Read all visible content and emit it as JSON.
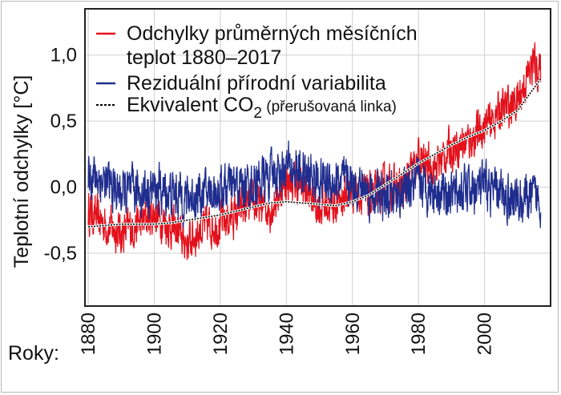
{
  "chart_data": {
    "type": "line",
    "ylabel": "Teplotní odchylky [°C]",
    "xlabel": "Roky:",
    "xlim": [
      1879,
      2020
    ],
    "ylim": [
      -0.9,
      1.35
    ],
    "grid": true,
    "legend_placement": "top-left",
    "x_ticks": [
      1880,
      1900,
      1920,
      1940,
      1960,
      1980,
      2000
    ],
    "y_ticks": [
      {
        "value": 1.0,
        "label": "1,0"
      },
      {
        "value": 0.5,
        "label": "0,5"
      },
      {
        "value": 0.0,
        "label": "0,0"
      },
      {
        "value": -0.5,
        "label": "-0,5"
      }
    ],
    "legend": {
      "line1": "Odchylky průměrných měsíčních",
      "line2": "teplot 1880–2017",
      "residual": "Reziduální přírodní variabilita",
      "co2_main": "Ekvivalent CO",
      "co2_sub": "2",
      "co2_note": " (přerušovaná linka)"
    },
    "series": [
      {
        "color": "#e3111c",
        "style": "noisy",
        "years": [
          1880,
          1885,
          1890,
          1895,
          1900,
          1905,
          1910,
          1915,
          1920,
          1925,
          1930,
          1935,
          1940,
          1945,
          1950,
          1955,
          1960,
          1965,
          1970,
          1975,
          1980,
          1985,
          1990,
          1995,
          2000,
          2005,
          2010,
          2015,
          2017
        ],
        "values": [
          -0.18,
          -0.28,
          -0.35,
          -0.28,
          -0.2,
          -0.3,
          -0.42,
          -0.3,
          -0.28,
          -0.2,
          -0.13,
          -0.17,
          0.05,
          0.0,
          -0.15,
          -0.12,
          -0.02,
          -0.08,
          0.0,
          -0.02,
          0.2,
          0.15,
          0.3,
          0.35,
          0.45,
          0.58,
          0.65,
          0.95,
          0.85
        ],
        "noise": 0.13
      },
      {
        "color": "#1f2d8e",
        "style": "noisy",
        "years": [
          1880,
          1890,
          1900,
          1910,
          1920,
          1930,
          1940,
          1950,
          1960,
          1970,
          1980,
          1990,
          2000,
          2010,
          2017
        ],
        "values": [
          0.12,
          -0.05,
          -0.02,
          -0.08,
          -0.02,
          0.02,
          0.15,
          0.05,
          0.03,
          -0.1,
          0.02,
          -0.05,
          0.0,
          -0.1,
          -0.08
        ],
        "noise": 0.15
      },
      {
        "color": "#000000",
        "style": "dashed",
        "years": [
          1880,
          1885,
          1890,
          1895,
          1900,
          1905,
          1910,
          1915,
          1920,
          1925,
          1930,
          1935,
          1940,
          1945,
          1950,
          1955,
          1960,
          1965,
          1970,
          1975,
          1980,
          1985,
          1990,
          1995,
          2000,
          2005,
          2010,
          2017
        ],
        "values": [
          -0.3,
          -0.29,
          -0.28,
          -0.28,
          -0.28,
          -0.27,
          -0.25,
          -0.23,
          -0.21,
          -0.18,
          -0.15,
          -0.12,
          -0.11,
          -0.12,
          -0.13,
          -0.14,
          -0.11,
          -0.06,
          0.02,
          0.1,
          0.18,
          0.25,
          0.32,
          0.38,
          0.43,
          0.5,
          0.58,
          0.82
        ]
      }
    ]
  }
}
